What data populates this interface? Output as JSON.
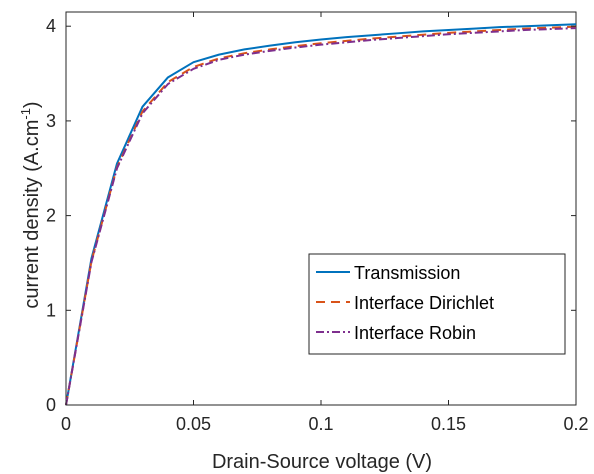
{
  "chart_data": {
    "type": "line",
    "title": "",
    "xlabel": "Drain-Source voltage (V)",
    "ylabel": "current density (A.cm",
    "ylabel_sup": "-1",
    "ylabel_close": ")",
    "xlim": [
      0,
      0.2
    ],
    "ylim": [
      0,
      4.15
    ],
    "x_ticks": [
      0,
      0.05,
      0.1,
      0.15,
      0.2
    ],
    "x_tick_labels": [
      "0",
      "0.05",
      "0.1",
      "0.15",
      "0.2"
    ],
    "y_ticks": [
      0,
      1,
      2,
      3,
      4
    ],
    "y_tick_labels": [
      "0",
      "1",
      "2",
      "3",
      "4"
    ],
    "grid": false,
    "legend_position": "bottom-right",
    "x": [
      0,
      0.01,
      0.02,
      0.03,
      0.04,
      0.05,
      0.06,
      0.07,
      0.08,
      0.09,
      0.1,
      0.11,
      0.12,
      0.13,
      0.14,
      0.15,
      0.16,
      0.17,
      0.18,
      0.19,
      0.2
    ],
    "series": [
      {
        "name": "Transmission",
        "color": "#0072BD",
        "style": "solid",
        "values": [
          0,
          1.55,
          2.55,
          3.15,
          3.46,
          3.62,
          3.7,
          3.755,
          3.795,
          3.83,
          3.86,
          3.885,
          3.905,
          3.925,
          3.945,
          3.96,
          3.975,
          3.99,
          4.0,
          4.01,
          4.02
        ]
      },
      {
        "name": "Interface Dirichlet",
        "color": "#D95319",
        "style": "dashed",
        "values": [
          0,
          1.52,
          2.51,
          3.1,
          3.41,
          3.57,
          3.66,
          3.715,
          3.755,
          3.79,
          3.82,
          3.845,
          3.87,
          3.89,
          3.91,
          3.93,
          3.945,
          3.96,
          3.975,
          3.985,
          3.995
        ]
      },
      {
        "name": "Interface Robin",
        "color": "#7E2F8E",
        "style": "dashdot",
        "values": [
          0,
          1.51,
          2.5,
          3.08,
          3.39,
          3.55,
          3.645,
          3.7,
          3.74,
          3.775,
          3.805,
          3.83,
          3.855,
          3.875,
          3.895,
          3.915,
          3.93,
          3.945,
          3.96,
          3.97,
          3.98
        ]
      }
    ]
  }
}
